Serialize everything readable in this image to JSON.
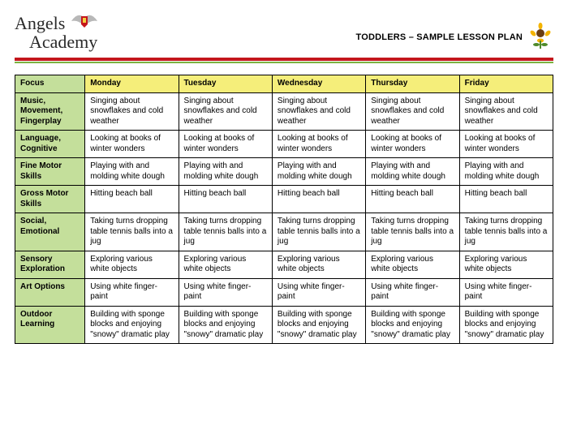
{
  "header": {
    "logo_line1": "Angels",
    "logo_line2": "Academy",
    "title": "TODDLERS – SAMPLE LESSON PLAN"
  },
  "table": {
    "focus_header": "Focus",
    "day_headers": [
      "Monday",
      "Tuesday",
      "Wednesday",
      "Thursday",
      "Friday"
    ],
    "header_colors": {
      "focus_bg": "#c4df9b",
      "day_bg": "#f5ee7a"
    },
    "border_color": "#000000",
    "cell_bg": "#ffffff",
    "label_bg": "#c4df9b",
    "font_size_pt": 7.5,
    "rows": [
      {
        "label": "Music, Movement, Fingerplay",
        "cells": [
          "Singing about snowflakes and cold weather",
          "Singing about snowflakes and cold weather",
          "Singing about snowflakes and cold weather",
          "Singing about snowflakes and cold weather",
          "Singing about snowflakes and cold weather"
        ]
      },
      {
        "label": "Language, Cognitive",
        "cells": [
          "Looking at books of winter wonders",
          "Looking at books of winter wonders",
          "Looking at books of winter wonders",
          "Looking at books of winter wonders",
          "Looking at books of winter wonders"
        ]
      },
      {
        "label": "Fine Motor Skills",
        "cells": [
          "Playing with and molding white dough",
          "Playing with and molding white dough",
          "Playing with and molding white dough",
          "Playing with and molding white dough",
          "Playing with and molding white dough"
        ]
      },
      {
        "label": "Gross Motor Skills",
        "cells": [
          "Hitting beach ball",
          "Hitting beach ball",
          "Hitting beach ball",
          "Hitting beach ball",
          "Hitting beach ball"
        ]
      },
      {
        "label": "Social, Emotional",
        "cells": [
          "Taking turns dropping table tennis balls into a jug",
          "Taking turns dropping table tennis balls into a jug",
          "Taking turns dropping table tennis balls into a jug",
          "Taking turns dropping table tennis balls into a jug",
          "Taking turns dropping table tennis balls into a jug"
        ]
      },
      {
        "label": "Sensory Exploration",
        "cells": [
          "Exploring various white objects",
          "Exploring various white objects",
          "Exploring various white objects",
          "Exploring various white objects",
          "Exploring various white objects"
        ]
      },
      {
        "label": "Art Options",
        "cells": [
          "Using white finger-paint",
          "Using white finger-paint",
          "Using white finger-paint",
          "Using white finger-paint",
          "Using white finger-paint"
        ]
      },
      {
        "label": "Outdoor Learning",
        "cells": [
          "Building with sponge blocks and enjoying \"snowy\" dramatic play",
          "Building with sponge blocks and enjoying \"snowy\" dramatic play",
          "Building with sponge blocks and enjoying \"snowy\" dramatic play",
          "Building with sponge blocks and enjoying \"snowy\" dramatic play",
          "Building with sponge blocks and enjoying \"snowy\" dramatic play"
        ]
      }
    ]
  },
  "colors": {
    "rule_red": "#c4161c",
    "rule_green": "#7cb342",
    "sunflower_petal": "#f4b400",
    "sunflower_center": "#6b3e12",
    "sunflower_leaf": "#4f8a2b"
  }
}
